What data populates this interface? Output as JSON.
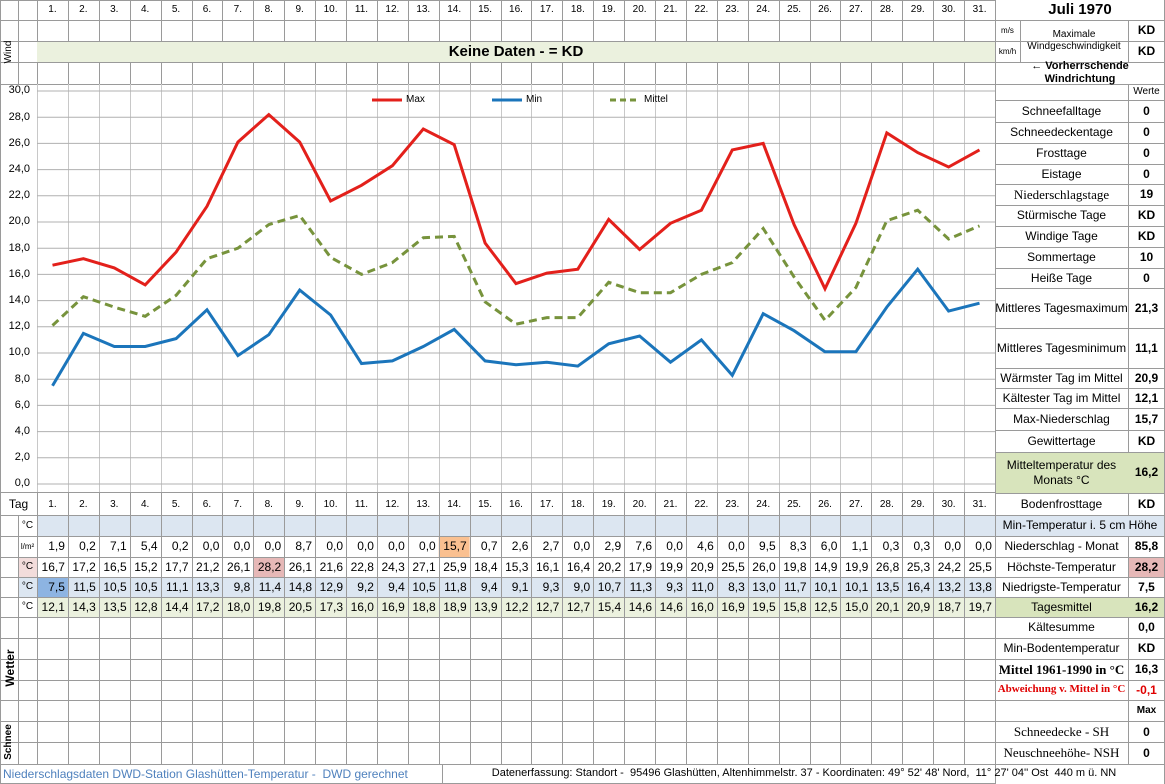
{
  "header": {
    "title": "Juli 1970"
  },
  "side_labels": {
    "wind": "Wind",
    "weather": "Wetter",
    "snow": "Schnee"
  },
  "wind": {
    "banner": "Keine Daten -  = KD",
    "unit_ms": "m/s",
    "unit_kmh": "km/h",
    "max_label": "Maximale Windgeschwindigkeit",
    "max_ms": "KD",
    "max_kmh": "KD",
    "direction": "← Vorherrschende Windrichtung"
  },
  "chart_data": {
    "type": "line",
    "categories": [
      "1.",
      "2.",
      "3.",
      "4.",
      "5.",
      "6.",
      "7.",
      "8.",
      "9.",
      "10.",
      "11.",
      "12.",
      "13.",
      "14.",
      "15.",
      "16.",
      "17.",
      "18.",
      "19.",
      "20.",
      "21.",
      "22.",
      "23.",
      "24.",
      "25.",
      "26.",
      "27.",
      "28.",
      "29.",
      "30.",
      "31."
    ],
    "series": [
      {
        "name": "Max",
        "color": "#e3201b",
        "values": [
          16.7,
          17.2,
          16.5,
          15.2,
          17.7,
          21.2,
          26.1,
          28.2,
          26.1,
          21.6,
          22.8,
          24.3,
          27.1,
          25.9,
          18.4,
          15.3,
          16.1,
          16.4,
          20.2,
          17.9,
          19.9,
          20.9,
          25.5,
          26.0,
          19.8,
          14.9,
          19.9,
          26.8,
          25.3,
          24.2,
          25.5
        ]
      },
      {
        "name": "Min",
        "color": "#1b75bb",
        "values": [
          7.5,
          11.5,
          10.5,
          10.5,
          11.1,
          13.3,
          9.8,
          11.4,
          14.8,
          12.9,
          9.2,
          9.4,
          10.5,
          11.8,
          9.4,
          9.1,
          9.3,
          9.0,
          10.7,
          11.3,
          9.3,
          11.0,
          8.3,
          13.0,
          11.7,
          10.1,
          10.1,
          13.5,
          16.4,
          13.2,
          13.8
        ]
      },
      {
        "name": "Mittel",
        "color": "#77933c",
        "dashed": true,
        "values": [
          12.1,
          14.3,
          13.5,
          12.8,
          14.4,
          17.2,
          18.0,
          19.8,
          20.5,
          17.3,
          16.0,
          16.9,
          18.8,
          18.9,
          13.9,
          12.2,
          12.7,
          12.7,
          15.4,
          14.6,
          14.6,
          16.0,
          16.9,
          19.5,
          15.8,
          12.5,
          15.0,
          20.1,
          20.9,
          18.7,
          19.7
        ]
      }
    ],
    "ylim": [
      0,
      30
    ],
    "yticks": [
      {
        "value": 0,
        "label": "0,0"
      },
      {
        "value": 2,
        "label": "2,0"
      },
      {
        "value": 4,
        "label": "4,0"
      },
      {
        "value": 6,
        "label": "6,0"
      },
      {
        "value": 8,
        "label": "8,0"
      },
      {
        "value": 10,
        "label": "10,0"
      },
      {
        "value": 12,
        "label": "12,0"
      },
      {
        "value": 14,
        "label": "14,0"
      },
      {
        "value": 16,
        "label": "16,0"
      },
      {
        "value": 18,
        "label": "18,0"
      },
      {
        "value": 20,
        "label": "20,0"
      },
      {
        "value": 22,
        "label": "22,0"
      },
      {
        "value": 24,
        "label": "24,0"
      },
      {
        "value": 26,
        "label": "26,0"
      },
      {
        "value": 28,
        "label": "28,0"
      },
      {
        "value": 30,
        "label": "30,0"
      }
    ],
    "grid": true,
    "legend": "top"
  },
  "table": {
    "label": "Tag",
    "rows": [
      {
        "unit": "°C",
        "color": "#dce6f1"
      },
      {
        "unit": "l/m²",
        "values": [
          "1,9",
          "0,2",
          "7,1",
          "5,4",
          "0,2",
          "0,0",
          "0,0",
          "0,0",
          "8,7",
          "0,0",
          "0,0",
          "0,0",
          "0,0",
          "15,7",
          "0,7",
          "2,6",
          "2,7",
          "0,0",
          "2,9",
          "7,6",
          "0,0",
          "4,6",
          "0,0",
          "9,5",
          "8,3",
          "6,0",
          "1,1",
          "0,3",
          "0,3",
          "0,0",
          "0,0"
        ],
        "highlight": 13,
        "highlight_color": "#fac090"
      },
      {
        "unit": "°C",
        "unit_color": "#f2dcdb",
        "values": [
          "16,7",
          "17,2",
          "16,5",
          "15,2",
          "17,7",
          "21,2",
          "26,1",
          "28,2",
          "26,1",
          "21,6",
          "22,8",
          "24,3",
          "27,1",
          "25,9",
          "18,4",
          "15,3",
          "16,1",
          "16,4",
          "20,2",
          "17,9",
          "19,9",
          "20,9",
          "25,5",
          "26,0",
          "19,8",
          "14,9",
          "19,9",
          "26,8",
          "25,3",
          "24,2",
          "25,5"
        ],
        "highlight": 7,
        "highlight_color": "#e6b8b7"
      },
      {
        "unit": "°C",
        "unit_color": "#dce6f1",
        "color": "#dce6f1",
        "values": [
          "7,5",
          "11,5",
          "10,5",
          "10,5",
          "11,1",
          "13,3",
          "9,8",
          "11,4",
          "14,8",
          "12,9",
          "9,2",
          "9,4",
          "10,5",
          "11,8",
          "9,4",
          "9,1",
          "9,3",
          "9,0",
          "10,7",
          "11,3",
          "9,3",
          "11,0",
          "8,3",
          "13,0",
          "11,7",
          "10,1",
          "10,1",
          "13,5",
          "16,4",
          "13,2",
          "13,8"
        ],
        "highlight": 0,
        "highlight_color": "#8db4e2"
      },
      {
        "unit": "°C",
        "color": "#ebf1de",
        "values": [
          "12,1",
          "14,3",
          "13,5",
          "12,8",
          "14,4",
          "17,2",
          "18,0",
          "19,8",
          "20,5",
          "17,3",
          "16,0",
          "16,9",
          "18,8",
          "18,9",
          "13,9",
          "12,2",
          "12,7",
          "12,7",
          "15,4",
          "14,6",
          "14,6",
          "16,0",
          "16,9",
          "19,5",
          "15,8",
          "12,5",
          "15,0",
          "20,1",
          "20,9",
          "18,7",
          "19,7"
        ]
      }
    ]
  },
  "stats": {
    "header": "Werte",
    "rows": [
      {
        "label": "Schneefalltage",
        "value": "0"
      },
      {
        "label": "Schneedeckentage",
        "value": "0"
      },
      {
        "label": "Frosttage",
        "value": "0"
      },
      {
        "label": "Eistage",
        "value": "0"
      },
      {
        "label": "Niederschlagstage",
        "value": "19"
      },
      {
        "label": "Stürmische Tage",
        "value": "KD"
      },
      {
        "label": "Windige Tage",
        "value": "KD"
      },
      {
        "label": "Sommertage",
        "value": "10"
      },
      {
        "label": "Heiße Tage",
        "value": "0"
      },
      {
        "label": "Mittleres Tagesmaximum",
        "value": "21,3"
      },
      {
        "label": "Mittleres Tagesminimum",
        "value": "11,1"
      },
      {
        "label": "Wärmster Tag im Mittel",
        "value": "20,9"
      },
      {
        "label": "Kältester Tag im Mittel",
        "value": "12,1"
      },
      {
        "label": "Max-Niederschlag",
        "value": "15,7"
      },
      {
        "label": "Gewittertage",
        "value": "KD"
      },
      {
        "label": "Mitteltemperatur des Monats °C",
        "value": "16,2"
      },
      {
        "label": "Bodenfrosttage",
        "value": "KD"
      }
    ]
  },
  "lower": {
    "title": "Min-Temperatur i. 5 cm Höhe",
    "rows": [
      {
        "label": "Niederschlag - Monat",
        "value": "85,8"
      },
      {
        "label": "Höchste-Temperatur",
        "value": "28,2"
      },
      {
        "label": "Niedrigste-Temperatur",
        "value": "7,5"
      },
      {
        "label": "Tagesmittel",
        "value": "16,2"
      },
      {
        "label": "Kältesumme",
        "value": "0,0"
      },
      {
        "label": "Min-Bodentemperatur",
        "value": "KD"
      },
      {
        "label": "Mittel 1961-1990 in °C",
        "value": "16,3"
      },
      {
        "label": "Abweichung v. Mittel in °C",
        "value": "-0,1"
      }
    ],
    "max_header": "Max",
    "snow": [
      {
        "label": "Schneedecke - SH",
        "value": "0"
      },
      {
        "label": "Neuschneehöhe- NSH",
        "value": "0"
      }
    ]
  },
  "footer": {
    "left": "Niederschlagsdaten DWD-Station Glashütten-Temperatur -  DWD gerechnet",
    "right": "Datenerfassung: Standort -  95496 Glashütten, Altenhimmelstr. 37 - Koordinaten: 49° 52' 48' Nord,  11° 27' 04'' Ost  440 m ü. NN"
  }
}
